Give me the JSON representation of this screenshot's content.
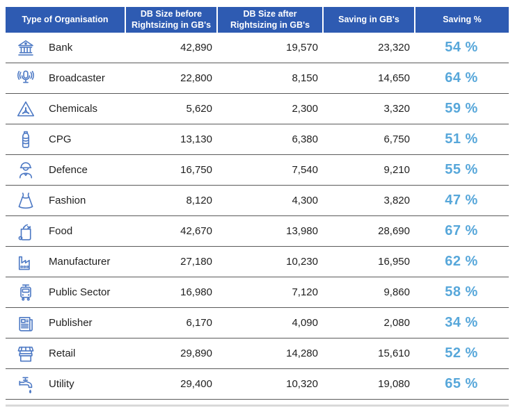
{
  "table": {
    "header": {
      "columns": [
        "Type of Organisation",
        "DB Size before Rightsizing in GB's",
        "DB Size after Rightsizing in GB's",
        "Saving in GB's",
        "Saving %"
      ]
    },
    "rows": [
      {
        "icon": "bank-icon",
        "organisation": "Bank",
        "before": "42,890",
        "after": "19,570",
        "saving": "23,320",
        "saving_pct": "54 %"
      },
      {
        "icon": "broadcaster-icon",
        "organisation": "Broadcaster",
        "before": "22,800",
        "after": "8,150",
        "saving": "14,650",
        "saving_pct": "64 %"
      },
      {
        "icon": "chemicals-icon",
        "organisation": "Chemicals",
        "before": "5,620",
        "after": "2,300",
        "saving": "3,320",
        "saving_pct": "59 %"
      },
      {
        "icon": "cpg-bottle-icon",
        "organisation": "CPG",
        "before": "13,130",
        "after": "6,380",
        "saving": "6,750",
        "saving_pct": "51 %"
      },
      {
        "icon": "defence-icon",
        "organisation": "Defence",
        "before": "16,750",
        "after": "7,540",
        "saving": "9,210",
        "saving_pct": "55 %"
      },
      {
        "icon": "fashion-icon",
        "organisation": "Fashion",
        "before": "8,120",
        "after": "4,300",
        "saving": "3,820",
        "saving_pct": "47 %"
      },
      {
        "icon": "food-icon",
        "organisation": "Food",
        "before": "42,670",
        "after": "13,980",
        "saving": "28,690",
        "saving_pct": "67 %"
      },
      {
        "icon": "manufacturer-icon",
        "organisation": "Manufacturer",
        "before": "27,180",
        "after": "10,230",
        "saving": "16,950",
        "saving_pct": "62 %"
      },
      {
        "icon": "public-sector-icon",
        "organisation": "Public Sector",
        "before": "16,980",
        "after": "7,120",
        "saving": "9,860",
        "saving_pct": "58 %"
      },
      {
        "icon": "publisher-icon",
        "organisation": "Publisher",
        "before": "6,170",
        "after": "4,090",
        "saving": "2,080",
        "saving_pct": "34 %"
      },
      {
        "icon": "retail-icon",
        "organisation": "Retail",
        "before": "29,890",
        "after": "14,280",
        "saving": "15,610",
        "saving_pct": "52 %"
      },
      {
        "icon": "utility-icon",
        "organisation": "Utility",
        "before": "29,400",
        "after": "10,320",
        "saving": "19,080",
        "saving_pct": "65 %"
      }
    ]
  },
  "colors": {
    "header_bg": "#2e5bb2",
    "header_text": "#ffffff",
    "saving_pct_blue": "#57a7da",
    "icon_stroke_blue": "#4d79c4",
    "row_divider": "#595959",
    "body_text": "#1f1f1f",
    "bottom_strip": "#d9d9d9"
  },
  "chart_data": {
    "type": "table",
    "columns": [
      "Type of Organisation",
      "DB Size before Rightsizing in GB's",
      "DB Size after Rightsizing in GB's",
      "Saving in GB's",
      "Saving %"
    ],
    "rows": [
      [
        "Bank",
        42890,
        19570,
        23320,
        54
      ],
      [
        "Broadcaster",
        22800,
        8150,
        14650,
        64
      ],
      [
        "Chemicals",
        5620,
        2300,
        3320,
        59
      ],
      [
        "CPG",
        13130,
        6380,
        6750,
        51
      ],
      [
        "Defence",
        16750,
        7540,
        9210,
        55
      ],
      [
        "Fashion",
        8120,
        4300,
        3820,
        47
      ],
      [
        "Food",
        42670,
        13980,
        28690,
        67
      ],
      [
        "Manufacturer",
        27180,
        10230,
        16950,
        62
      ],
      [
        "Public Sector",
        16980,
        7120,
        9860,
        58
      ],
      [
        "Publisher",
        6170,
        4090,
        2080,
        34
      ],
      [
        "Retail",
        29890,
        14280,
        15610,
        52
      ],
      [
        "Utility",
        29400,
        10320,
        19080,
        65
      ]
    ]
  }
}
